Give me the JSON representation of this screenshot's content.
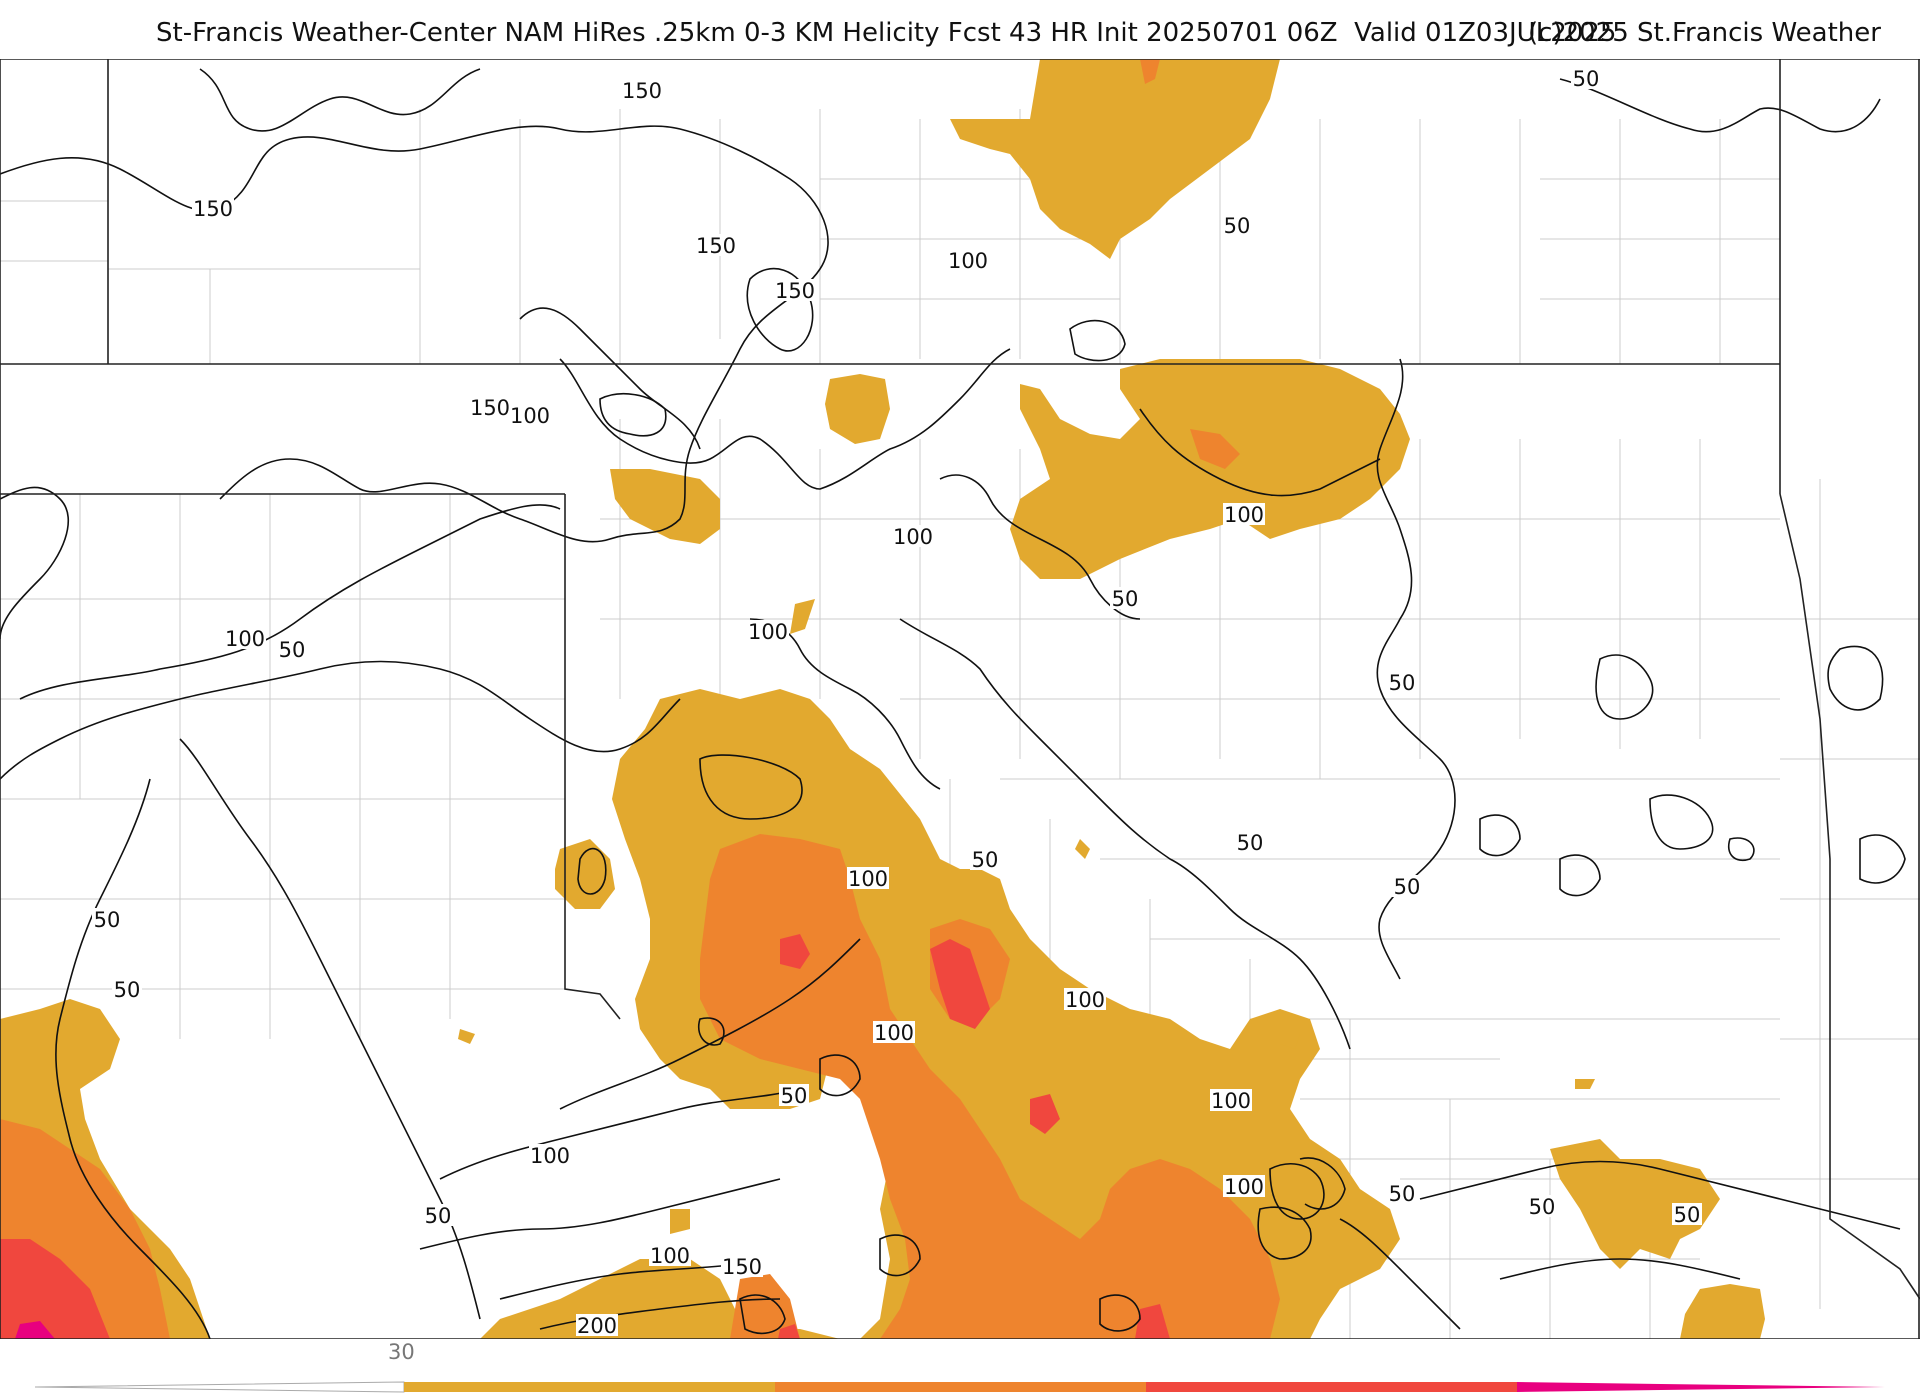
{
  "header": {
    "title": "St-Francis Weather-Center NAM HiRes .25km 0-3 KM Helicity Fcst 43 HR Init 20250701 06Z  Valid 01Z03JUL2025",
    "copyright": "(c)2025 St.Francis Weather"
  },
  "map": {
    "fill_colors": {
      "level1": "#e2a92f",
      "level2": "#ee842e",
      "level3": "#f0473e",
      "level4": "#e8007f"
    },
    "contour_color": "#111111",
    "border_color": "#222222",
    "county_color": "#cccccc",
    "contour_labels": [
      "150",
      "150",
      "150",
      "150",
      "150",
      "100",
      "50",
      "50",
      "150",
      "100",
      "100",
      "50",
      "100",
      "100",
      "50",
      "100",
      "50",
      "50",
      "50",
      "50",
      "50",
      "100",
      "50",
      "100",
      "100",
      "100",
      "50",
      "100",
      "50",
      "100",
      "150",
      "200",
      "50",
      "50",
      "50",
      "100"
    ]
  },
  "colorbar": {
    "tick_label": "30",
    "colors": [
      "#e2a92f",
      "#ee842e",
      "#f0473e",
      "#e8007f"
    ]
  }
}
